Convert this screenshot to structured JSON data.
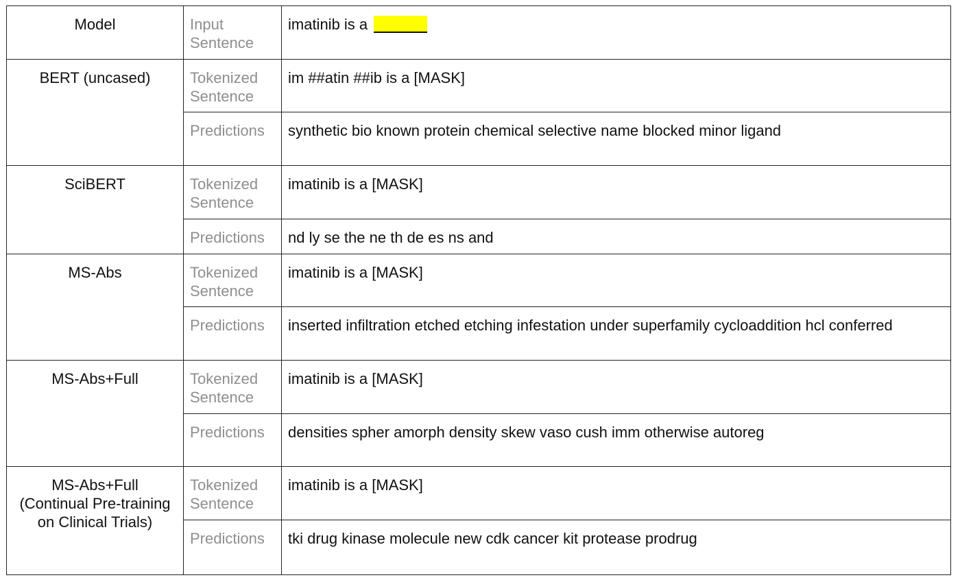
{
  "header": {
    "model_label": "Model",
    "input_label": "Input Sentence",
    "input_text": "imatinib is a",
    "blank_color": "#ffff00"
  },
  "row_labels": {
    "tokenized": "Tokenized Sentence",
    "predictions": "Predictions"
  },
  "models": [
    {
      "name": "BERT (uncased)",
      "tokenized": "im ##atin ##ib is a [MASK]",
      "predictions": "synthetic bio known protein chemical selective name blocked minor ligand"
    },
    {
      "name": "SciBERT",
      "tokenized": "imatinib is a [MASK]",
      "predictions": "nd ly se the ne th de es ns and"
    },
    {
      "name": "MS-Abs",
      "tokenized": "imatinib is a [MASK]",
      "predictions": "inserted infiltration etched etching infestation under superfamily cycloaddition hcl conferred"
    },
    {
      "name": "MS-Abs+Full",
      "tokenized": "imatinib is a [MASK]",
      "predictions": "densities spher amorph density skew vaso cush imm otherwise autoreg"
    },
    {
      "name": "MS-Abs+Full\n(Continual Pre-training\non Clinical Trials)",
      "tokenized": "imatinib is a [MASK]",
      "predictions": "tki drug kinase molecule new cdk cancer kit protease prodrug"
    }
  ]
}
